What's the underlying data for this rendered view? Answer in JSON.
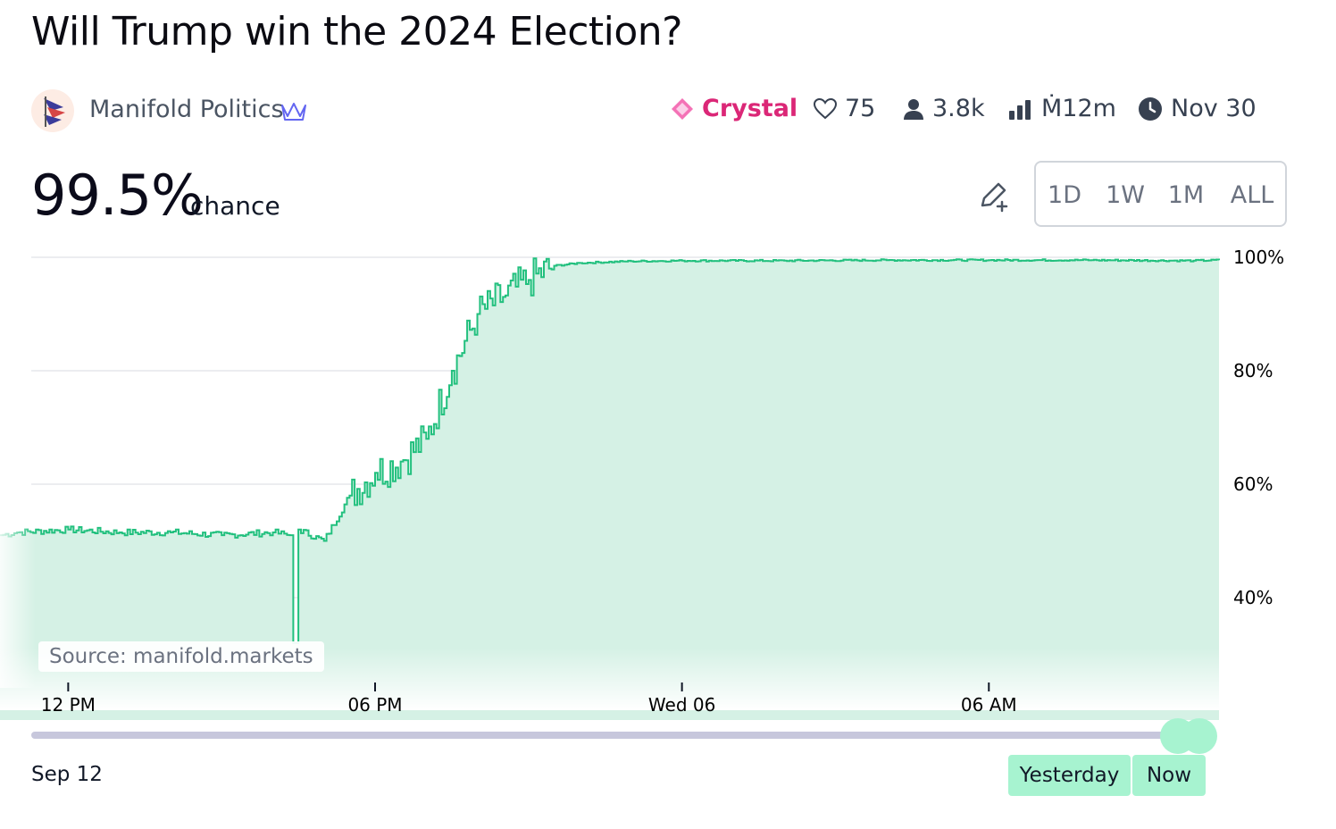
{
  "market": {
    "title": "Will Trump win the 2024 Election?"
  },
  "author": {
    "name": "Manifold Politics",
    "avatar_icon": "flag-avatar-icon",
    "badge_icon": "crown-icon"
  },
  "stats": {
    "tier": "Crystal",
    "likes": "75",
    "traders": "3.8k",
    "volume": "Ṁ12m",
    "close_date": "Nov 30"
  },
  "probability": {
    "value": "99.5%",
    "label": "chance"
  },
  "range_buttons": [
    {
      "label": "1D",
      "active": true
    },
    {
      "label": "1W",
      "active": false
    },
    {
      "label": "1M",
      "active": false
    },
    {
      "label": "ALL",
      "active": false
    }
  ],
  "colors": {
    "accent": "#14b8a6",
    "line": "#22c07e",
    "fill": "#d5f1e5",
    "tier": "#db2777",
    "slider": "#a7f3d0"
  },
  "chart_data": {
    "type": "area",
    "xlabel": "",
    "ylabel": "",
    "ylim": [
      0.2,
      1.0
    ],
    "y_ticks": [
      "100%",
      "80%",
      "60%",
      "40%"
    ],
    "x_ticks": [
      "12 PM",
      "06 PM",
      "Wed 06",
      "06 AM"
    ],
    "grid": true,
    "series": [
      {
        "x": [
          "2024-11-05T10:40",
          "2024-11-05T11:00",
          "2024-11-05T12:00",
          "2024-11-05T13:00",
          "2024-11-05T14:00",
          "2024-11-05T15:00",
          "2024-11-05T16:00",
          "2024-11-05T16:20",
          "2024-11-05T16:24",
          "2024-11-05T16:30",
          "2024-11-05T17:00",
          "2024-11-05T17:30",
          "2024-11-05T18:00",
          "2024-11-05T18:30",
          "2024-11-05T19:00",
          "2024-11-05T19:30",
          "2024-11-05T20:00",
          "2024-11-05T20:30",
          "2024-11-05T21:00",
          "2024-11-05T21:30",
          "2024-11-05T22:00",
          "2024-11-05T23:00",
          "2024-11-06T00:00",
          "2024-11-06T02:00",
          "2024-11-06T04:00",
          "2024-11-06T06:00",
          "2024-11-06T08:00",
          "2024-11-06T10:00",
          "2024-11-06T10:30"
        ],
        "y": [
          0.51,
          0.515,
          0.52,
          0.515,
          0.515,
          0.51,
          0.515,
          0.51,
          0.32,
          0.52,
          0.5,
          0.58,
          0.62,
          0.64,
          0.68,
          0.8,
          0.9,
          0.93,
          0.96,
          0.985,
          0.99,
          0.993,
          0.994,
          0.994,
          0.995,
          0.995,
          0.995,
          0.994,
          0.995
        ]
      }
    ]
  },
  "source": "Source: manifold.markets",
  "timeline": {
    "start_label": "Sep 12",
    "yesterday_label": "Yesterday",
    "now_label": "Now"
  }
}
